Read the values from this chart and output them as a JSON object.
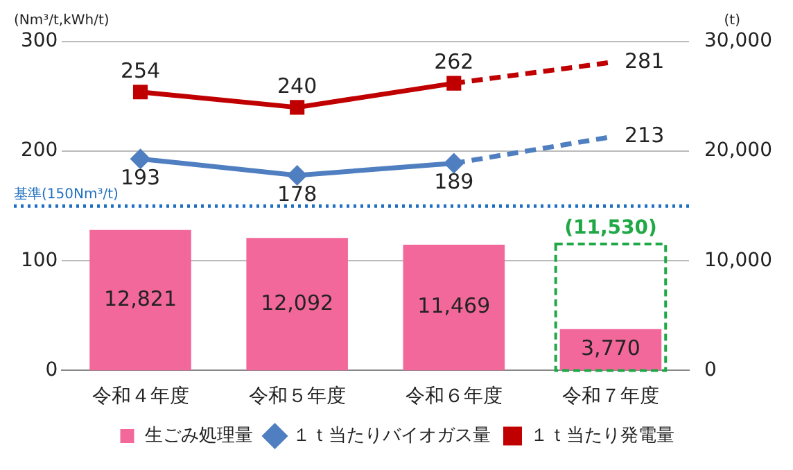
{
  "chart_data": {
    "type": "bar",
    "categories": [
      "令和４年度",
      "令和５年度",
      "令和６年度",
      "令和７年度"
    ],
    "ylabel": "(Nm³/t,kWh/t)",
    "y2label": "(t)",
    "ylim": [
      0,
      300
    ],
    "yticks": [
      0,
      100,
      200,
      300
    ],
    "y2lim": [
      0,
      30000
    ],
    "y2ticks": [
      {
        "value": 0,
        "label": "0"
      },
      {
        "value": 10000,
        "label": "10,000"
      },
      {
        "value": 20000,
        "label": "20,000"
      },
      {
        "value": 30000,
        "label": "30,000"
      }
    ],
    "grid": "y",
    "legend": "bottom",
    "ref_lines": [
      {
        "axis": "y",
        "value": 150,
        "label": "基準(150Nm³/t)",
        "color": "#1f6fc0",
        "line_style": "dotted"
      }
    ],
    "series": [
      {
        "name": "生ごみ処理量",
        "axis": "y2",
        "color": "#f2689a",
        "values": [
          12821,
          12092,
          11469,
          3770
        ],
        "value_labels": [
          "12,821",
          "12,092",
          "11,469",
          "3,770"
        ]
      },
      {
        "axis": "y2",
        "color": "#1fa846",
        "line_style": "dashed",
        "values": [
          null,
          null,
          null,
          11530
        ],
        "value_labels": [
          null,
          null,
          null,
          "(11,530)"
        ]
      },
      {
        "name": "１ｔ当たりバイオガス量",
        "type": "line",
        "axis": "y",
        "color": "#4f7fc0",
        "marker": "diamond",
        "line_style": "solid",
        "values": [
          193,
          178,
          189,
          null
        ],
        "value_labels": [
          "193",
          "178",
          "189",
          null
        ]
      },
      {
        "type": "line",
        "axis": "y",
        "color": "#4f7fc0",
        "marker": "none",
        "line_style": "dashed",
        "values": [
          null,
          null,
          189,
          213
        ],
        "value_labels": [
          null,
          null,
          null,
          "213"
        ]
      },
      {
        "name": "１ｔ当たり発電量",
        "type": "line",
        "axis": "y",
        "color": "#c00000",
        "marker": "square",
        "line_style": "solid",
        "values": [
          254,
          240,
          262,
          null
        ],
        "value_labels": [
          "254",
          "240",
          "262",
          null
        ]
      },
      {
        "type": "line",
        "axis": "y",
        "color": "#c00000",
        "marker": "none",
        "line_style": "dashed",
        "values": [
          null,
          null,
          262,
          281
        ],
        "value_labels": [
          null,
          null,
          null,
          "281"
        ]
      }
    ]
  }
}
